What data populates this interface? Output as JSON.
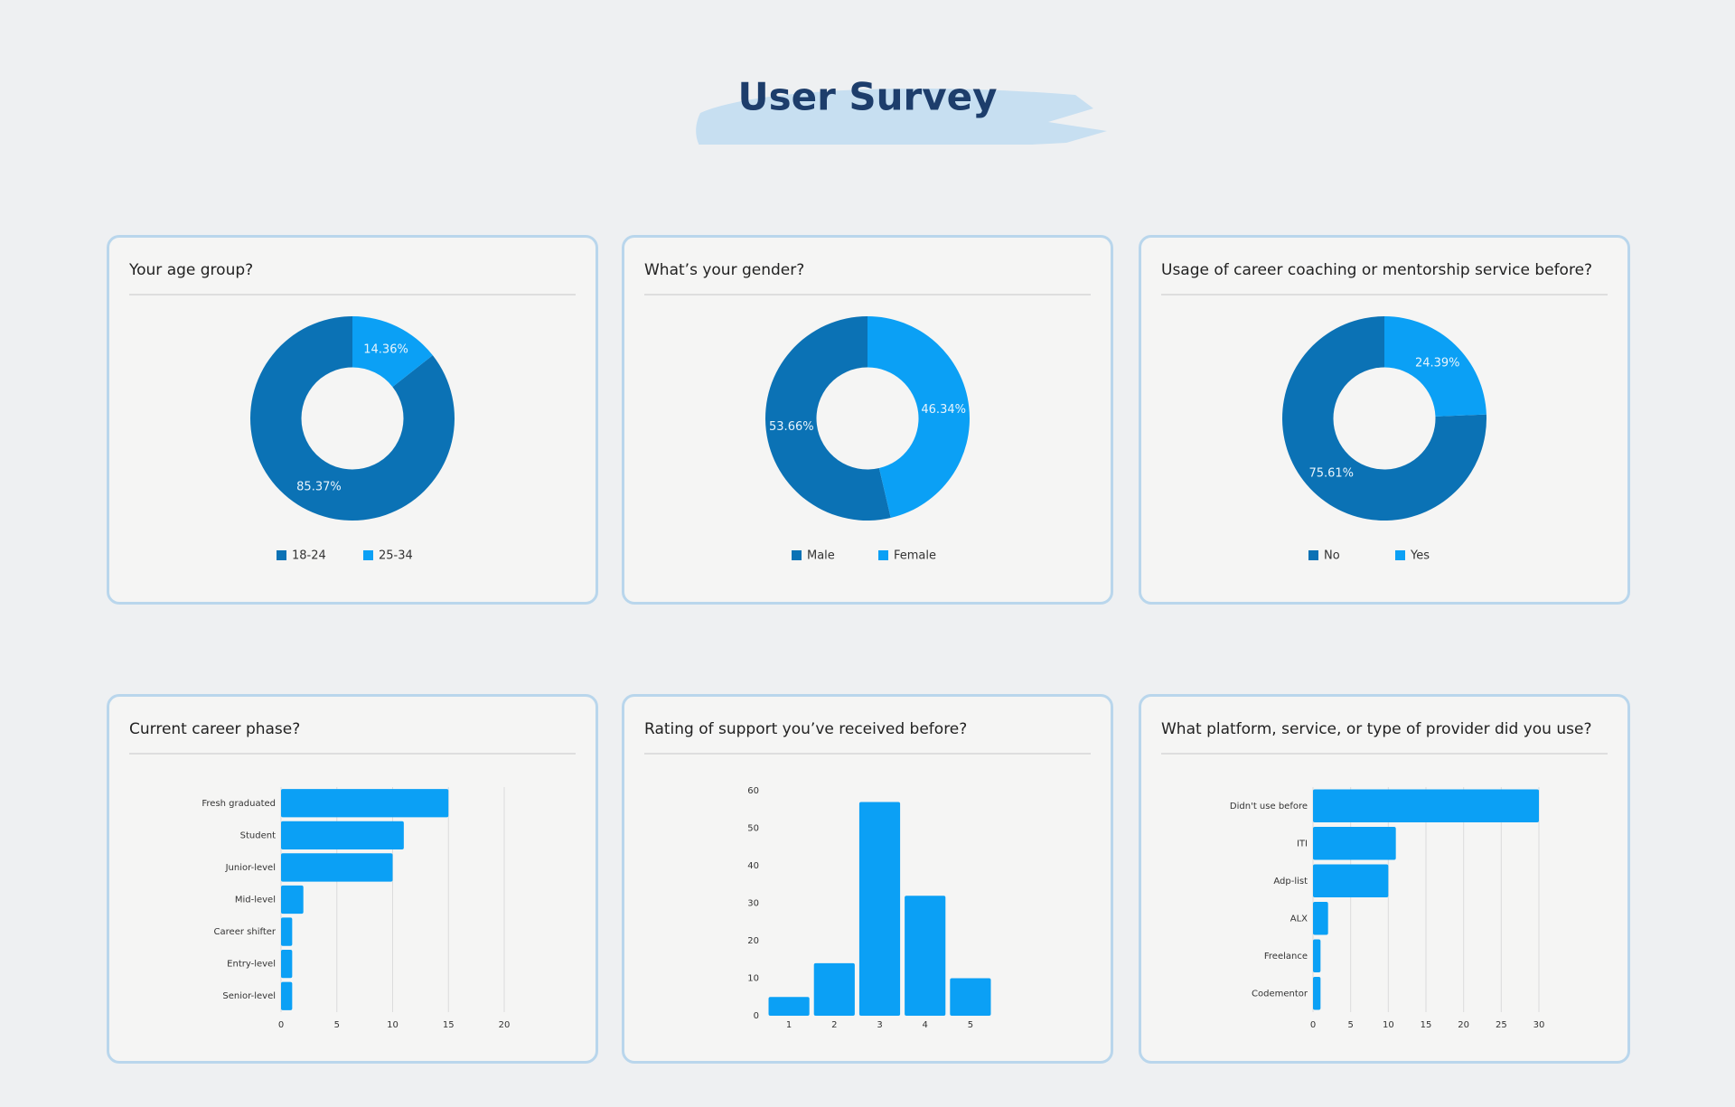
{
  "title": "User Survey",
  "chart_data": [
    {
      "type": "pie",
      "title": "Your age group?",
      "categories": [
        "18-24",
        "25-34"
      ],
      "values": [
        85.37,
        14.36
      ],
      "value_labels": [
        "85.37%",
        "14.36%"
      ],
      "colors": [
        "#0b72b5",
        "#0ba0f5"
      ],
      "hole": 0.5
    },
    {
      "type": "pie",
      "title": "What’s your gender?",
      "categories": [
        "Male",
        "Female"
      ],
      "values": [
        53.66,
        46.34
      ],
      "value_labels": [
        "53.66%",
        "46.34%"
      ],
      "colors": [
        "#0b72b5",
        "#0ba0f5"
      ],
      "hole": 0.5
    },
    {
      "type": "pie",
      "title": "Usage of career coaching or mentorship service before?",
      "categories": [
        "No",
        "Yes"
      ],
      "values": [
        75.61,
        24.39
      ],
      "value_labels": [
        "75.61%",
        "24.39%"
      ],
      "colors": [
        "#0b72b5",
        "#0ba0f5"
      ],
      "hole": 0.5
    },
    {
      "type": "bar",
      "orientation": "horizontal",
      "title": "Current career phase?",
      "categories": [
        "Fresh graduated",
        "Student",
        "Junior-level",
        "Mid-level",
        "Career shifter",
        "Entry-level",
        "Senior-level"
      ],
      "values": [
        15,
        11,
        10,
        2,
        1,
        1,
        1
      ],
      "color": "#0ba0f5",
      "xlim": [
        0,
        20
      ],
      "xticks": [
        0,
        5,
        10,
        15,
        20
      ],
      "grid": true
    },
    {
      "type": "bar",
      "orientation": "vertical",
      "title": "Rating of support you’ve received before?",
      "categories": [
        "1",
        "2",
        "3",
        "4",
        "5"
      ],
      "values": [
        5,
        14,
        57,
        32,
        10
      ],
      "color": "#0ba0f5",
      "ylim": [
        0,
        60
      ],
      "yticks": [
        0,
        10,
        20,
        30,
        40,
        50,
        60
      ],
      "grid": false
    },
    {
      "type": "bar",
      "orientation": "horizontal",
      "title": "What platform, service, or type of provider did you use?",
      "categories": [
        "Didn't use before",
        "ITI",
        "Adp-list",
        "ALX",
        "Freelance",
        "Codementor"
      ],
      "values": [
        30,
        11,
        10,
        2,
        1,
        1
      ],
      "color": "#0ba0f5",
      "xlim": [
        0,
        30
      ],
      "xticks": [
        0,
        5,
        10,
        15,
        20,
        25,
        30
      ],
      "grid": true
    }
  ]
}
